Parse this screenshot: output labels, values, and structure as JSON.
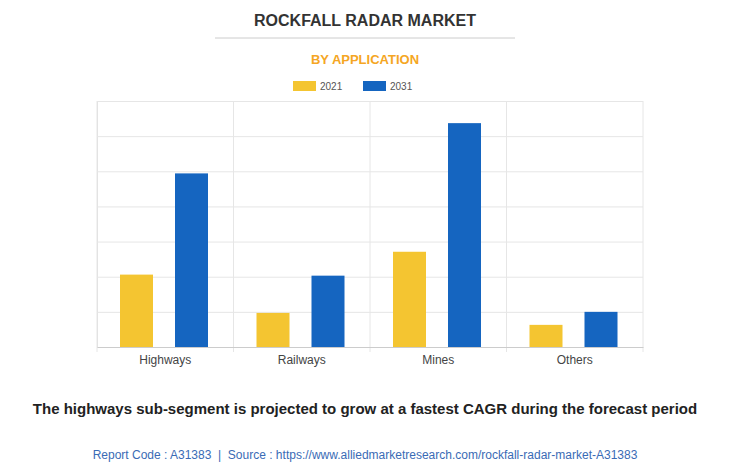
{
  "chart_data": {
    "type": "bar",
    "title": "ROCKFALL RADAR MARKET",
    "subtitle": "BY APPLICATION",
    "categories": [
      "Highways",
      "Railways",
      "Mines",
      "Others"
    ],
    "series": [
      {
        "name": "2021",
        "color": "#f4c531",
        "values": [
          2.06,
          0.97,
          2.71,
          0.63
        ]
      },
      {
        "name": "2031",
        "color": "#1565c0",
        "values": [
          4.94,
          2.03,
          6.37,
          1.0
        ]
      }
    ],
    "ylim": [
      0,
      7
    ],
    "yticks": [
      0,
      1,
      2,
      3,
      4,
      5,
      6,
      7
    ],
    "grid": true,
    "legend": "top",
    "tick_labels": "x",
    "caption": "The highways sub-segment is projected to grow at a fastest CAGR during the forecast period",
    "footer": "Report Code : A31383  |  Source : https://www.alliedmarketresearch.com/rockfall-radar-market-A31383"
  }
}
